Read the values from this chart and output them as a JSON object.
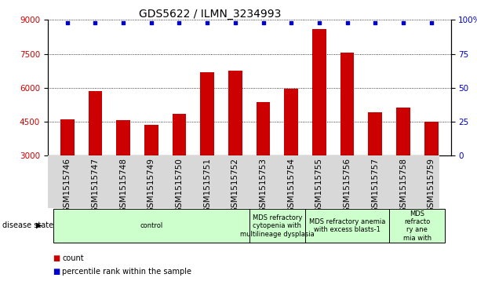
{
  "title": "GDS5622 / ILMN_3234993",
  "samples": [
    "GSM1515746",
    "GSM1515747",
    "GSM1515748",
    "GSM1515749",
    "GSM1515750",
    "GSM1515751",
    "GSM1515752",
    "GSM1515753",
    "GSM1515754",
    "GSM1515755",
    "GSM1515756",
    "GSM1515757",
    "GSM1515758",
    "GSM1515759"
  ],
  "counts": [
    4600,
    5850,
    4550,
    4350,
    4850,
    6700,
    6750,
    5350,
    5950,
    8600,
    7550,
    4900,
    5100,
    4500
  ],
  "percentiles": [
    98,
    98,
    98,
    98,
    98,
    98,
    98,
    98,
    98,
    98,
    98,
    98,
    98,
    98
  ],
  "ylim_left": [
    3000,
    9000
  ],
  "ylim_right": [
    0,
    100
  ],
  "yticks_left": [
    3000,
    4500,
    6000,
    7500,
    9000
  ],
  "yticks_right": [
    0,
    25,
    50,
    75,
    100
  ],
  "bar_color": "#cc0000",
  "dot_color": "#0000cc",
  "background_color": "#ffffff",
  "disease_state_label": "disease state",
  "legend_count_label": "count",
  "legend_percentile_label": "percentile rank within the sample",
  "tick_label_color_left": "#cc0000",
  "tick_label_color_right": "#0000cc",
  "title_fontsize": 10,
  "tick_fontsize": 7.5,
  "disease_fontsize": 6,
  "group_spans": [
    {
      "start": 0,
      "end": 7,
      "label": "control"
    },
    {
      "start": 7,
      "end": 9,
      "label": "MDS refractory\ncytopenia with\nmultilineage dysplasia"
    },
    {
      "start": 9,
      "end": 12,
      "label": "MDS refractory anemia\nwith excess blasts-1"
    },
    {
      "start": 12,
      "end": 14,
      "label": "MDS\nrefracto\nry ane\nmia with"
    }
  ],
  "group_color": "#ccffcc"
}
